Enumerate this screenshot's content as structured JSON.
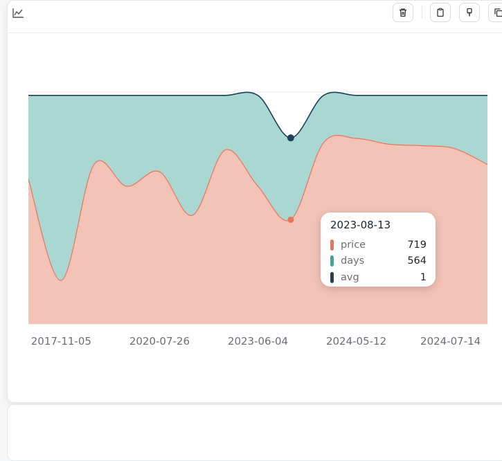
{
  "toolbar": {
    "chart_type_icon": "area-chart-icon",
    "buttons": [
      "trash-icon",
      "clipboard-icon",
      "paint-brush-icon",
      "copy-icon"
    ]
  },
  "colors": {
    "price": "#e8745a",
    "days": "#3aa89a",
    "avg": "#22405a",
    "price_fill": "#f4c3b8",
    "days_fill": "#a9d8d3"
  },
  "chart_data": {
    "type": "area",
    "stacked": true,
    "x_tick_labels": [
      "2017-11-05",
      "2020-07-26",
      "2023-06-04",
      "2024-05-12",
      "2024-07-14"
    ],
    "x_tick_index": [
      1,
      4,
      7,
      10,
      13
    ],
    "x": [
      "",
      "2017-11-05",
      "",
      "",
      "2020-07-26",
      "",
      "",
      "2023-06-04",
      "2023-08-13",
      "",
      "2024-05-12",
      "",
      "",
      "2024-07-14",
      ""
    ],
    "series": [
      {
        "name": "price",
        "values": [
          1000,
          300,
          1100,
          950,
          1050,
          750,
          1200,
          950,
          719,
          1250,
          1280,
          1240,
          1230,
          1210,
          1100
        ]
      },
      {
        "name": "days",
        "values": [
          576,
          1276,
          476,
          626,
          526,
          826,
          376,
          626,
          564,
          326,
          296,
          336,
          346,
          366,
          476
        ]
      },
      {
        "name": "avg",
        "values": [
          1,
          1,
          1,
          1,
          1,
          1,
          1,
          1,
          1,
          1,
          1,
          1,
          1,
          1,
          1
        ]
      }
    ],
    "ylim": [
      0,
      1600
    ],
    "grid": true,
    "y_axis_labels_shown": false,
    "legend": "none",
    "highlight_index": 8
  },
  "tooltip": {
    "date": "2023-08-13",
    "rows": [
      {
        "name": "price",
        "value": "719"
      },
      {
        "name": "days",
        "value": "564"
      },
      {
        "name": "avg",
        "value": "1"
      }
    ]
  }
}
